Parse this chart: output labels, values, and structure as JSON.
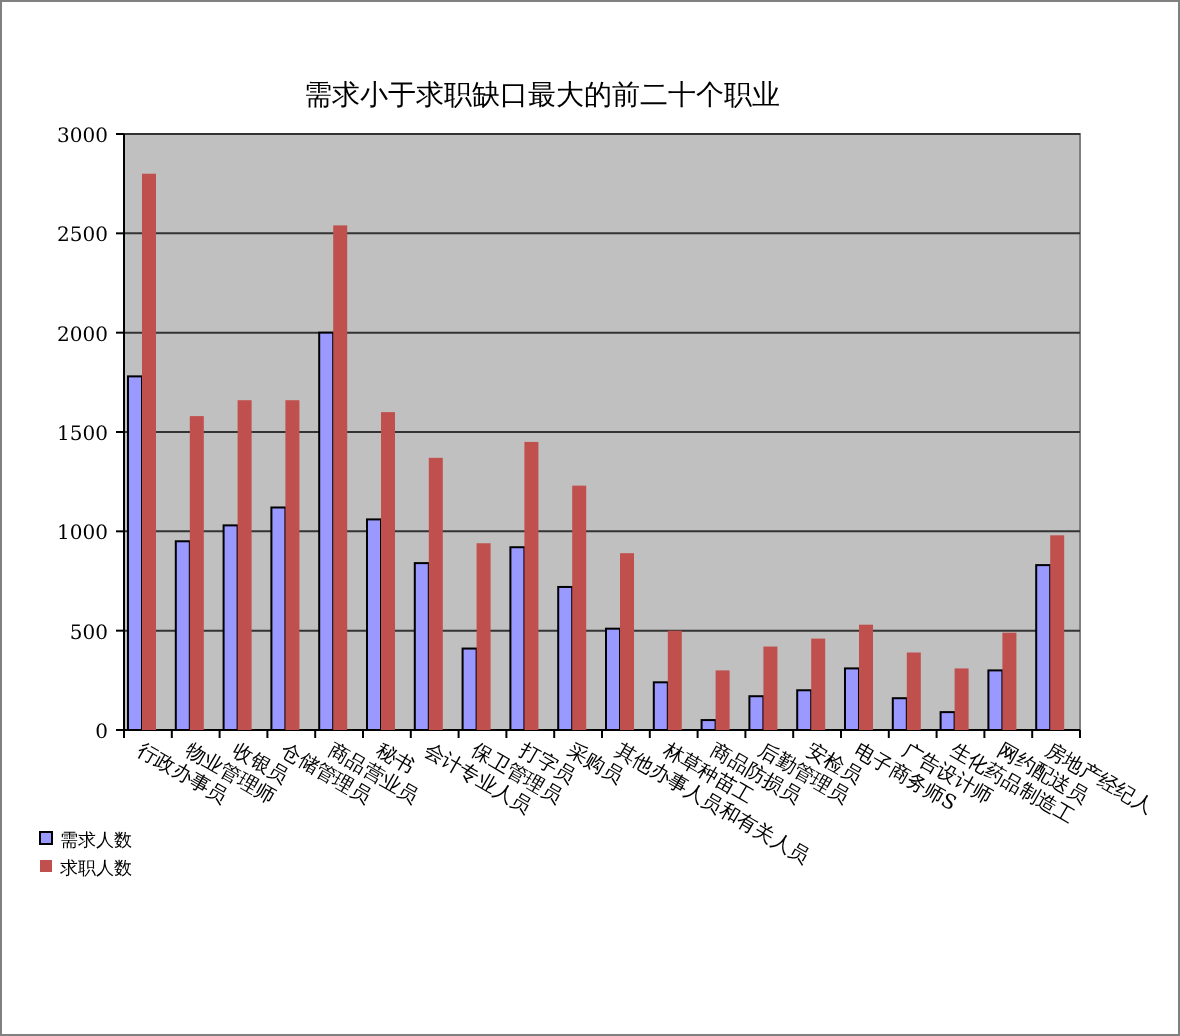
{
  "chart_data": {
    "type": "bar",
    "title": "需求小于求职缺口最大的前二十个职业",
    "categories": [
      "行政办事员",
      "物业管理师",
      "收银员",
      "仓储管理员",
      "商品营业员",
      "秘书",
      "会计专业人员",
      "保卫管理员",
      "打字员",
      "采购员",
      "其他办事人员和有关人员",
      "林草种苗工",
      "商品防损员",
      "后勤管理员",
      "安检员",
      "电子商务师S",
      "广告设计师",
      "生化药品制造工",
      "网约配送员",
      "房地产经纪人"
    ],
    "series": [
      {
        "name": "需求人数",
        "color": "#9999ff",
        "values": [
          1780,
          950,
          1030,
          1120,
          2000,
          1060,
          840,
          410,
          920,
          720,
          510,
          240,
          50,
          170,
          200,
          310,
          160,
          90,
          300,
          830
        ]
      },
      {
        "name": "求职人数",
        "color": "#c0504d",
        "values": [
          2800,
          1580,
          1660,
          1660,
          2540,
          1600,
          1370,
          940,
          1450,
          1230,
          890,
          500,
          300,
          420,
          460,
          530,
          390,
          310,
          490,
          980
        ]
      }
    ],
    "ylim": [
      0,
      3000
    ],
    "yticks": [
      0,
      500,
      1000,
      1500,
      2000,
      2500,
      3000
    ],
    "grid": "y",
    "legend": "bottom left"
  }
}
